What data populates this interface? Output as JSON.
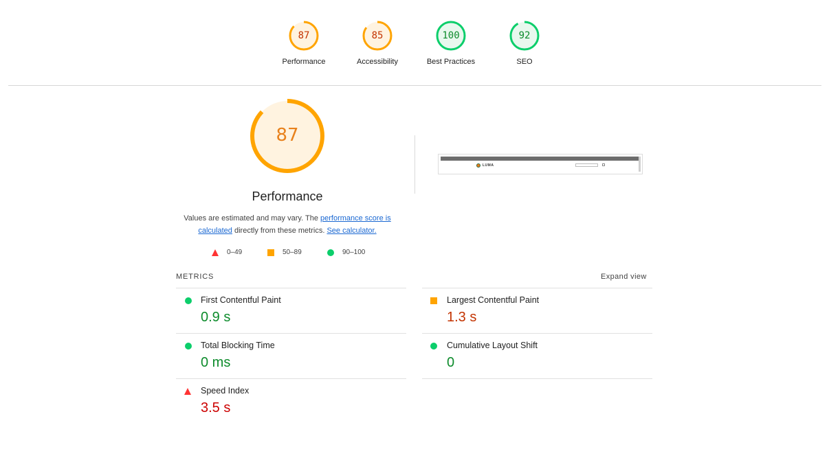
{
  "categories": [
    {
      "label": "Performance",
      "score": "87",
      "score_fraction": 0.87,
      "status": "average"
    },
    {
      "label": "Accessibility",
      "score": "85",
      "score_fraction": 0.85,
      "status": "average"
    },
    {
      "label": "Best Practices",
      "score": "100",
      "score_fraction": 1.0,
      "status": "pass"
    },
    {
      "label": "SEO",
      "score": "92",
      "score_fraction": 0.92,
      "status": "pass"
    }
  ],
  "performance": {
    "score": "87",
    "score_fraction": 0.87,
    "title": "Performance",
    "desc_prefix": "Values are estimated and may vary. The ",
    "desc_link": "performance score is calculated",
    "desc_middle": " directly from these metrics. ",
    "calc_link": "See calculator."
  },
  "legend": {
    "fail_range": "0–49",
    "average_range": "50–89",
    "pass_range": "90–100"
  },
  "thumbnail": {
    "logo_text": "LUMA"
  },
  "metrics": {
    "header": "METRICS",
    "expand_label": "Expand view",
    "fcp": {
      "name": "First Contentful Paint",
      "value": "0.9 s",
      "status": "pass"
    },
    "lcp": {
      "name": "Largest Contentful Paint",
      "value": "1.3 s",
      "status": "average"
    },
    "tbt": {
      "name": "Total Blocking Time",
      "value": "0 ms",
      "status": "pass"
    },
    "cls": {
      "name": "Cumulative Layout Shift",
      "value": "0",
      "status": "pass"
    },
    "si": {
      "name": "Speed Index",
      "value": "3.5 s",
      "status": "fail"
    }
  },
  "colors": {
    "pass": "#0cce6b",
    "pass_text": "#0c8b2b",
    "average": "#ffa400",
    "average_text": "#c33300",
    "fail": "#ff3333",
    "fail_text": "#cc0000",
    "link": "#1967d2"
  }
}
